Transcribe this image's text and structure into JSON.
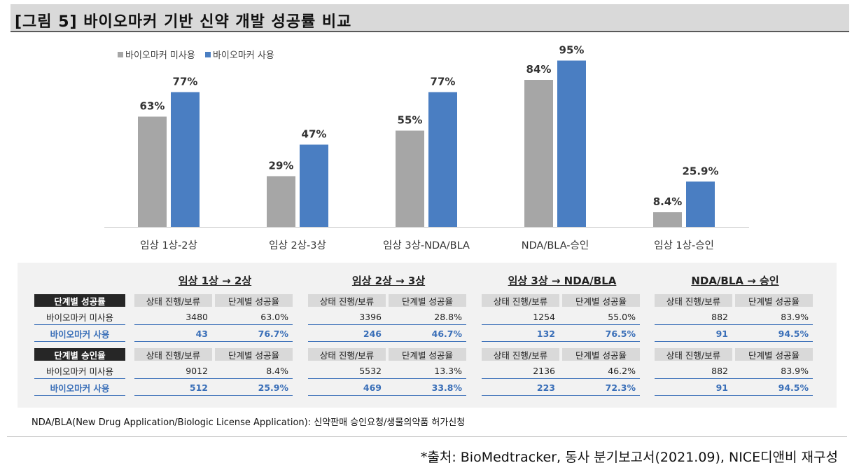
{
  "title": "[그림 5] 바이오마커 기반 신약 개발 성공률 비교",
  "colors": {
    "gray": "#a6a6a6",
    "blue": "#4a7ec2",
    "text_blue": "#3a6fb8",
    "header_dark": "#262626",
    "panel_bg": "#f2f2f2"
  },
  "chart_data": {
    "type": "bar",
    "categories": [
      "임상 1상-2상",
      "임상 2상-3상",
      "임상 3상-NDA/BLA",
      "NDA/BLA-승인",
      "임상 1상-승인"
    ],
    "series": [
      {
        "name": "바이오마커 미사용",
        "values": [
          63,
          29,
          55,
          84,
          8.4
        ],
        "labels": [
          "63%",
          "29%",
          "55%",
          "84%",
          "8.4%"
        ],
        "color": "#a6a6a6"
      },
      {
        "name": "바이오마커 사용",
        "values": [
          77,
          47,
          77,
          95,
          25.9
        ],
        "labels": [
          "77%",
          "47%",
          "77%",
          "95%",
          "25.9%"
        ],
        "color": "#4a7ec2"
      }
    ],
    "ylim": [
      0,
      100
    ],
    "legend": "top-left",
    "grid": false
  },
  "legend": {
    "items": [
      "바이오마커 미사용",
      "바이오마커 사용"
    ]
  },
  "table": {
    "groups": [
      "임상 1상 → 2상",
      "임상 2상 → 3상",
      "임상 3상 → NDA/BLA",
      "NDA/BLA → 승인"
    ],
    "col_headers": [
      "상태 진행/보류",
      "단계별 성공율"
    ],
    "sections": [
      {
        "label": "단계별 성공률",
        "rows": [
          {
            "label": "바이오마커 미사용",
            "values": [
              [
                "3480",
                "63.0%"
              ],
              [
                "3396",
                "28.8%"
              ],
              [
                "1254",
                "55.0%"
              ],
              [
                "882",
                "83.9%"
              ]
            ]
          },
          {
            "label": "바이오마커 사용",
            "values": [
              [
                "43",
                "76.7%"
              ],
              [
                "246",
                "46.7%"
              ],
              [
                "132",
                "76.5%"
              ],
              [
                "91",
                "94.5%"
              ]
            ]
          }
        ]
      },
      {
        "label": "단계별 승인율",
        "rows": [
          {
            "label": "바이오마커 미사용",
            "values": [
              [
                "9012",
                "8.4%"
              ],
              [
                "5532",
                "13.3%"
              ],
              [
                "2136",
                "46.2%"
              ],
              [
                "882",
                "83.9%"
              ]
            ]
          },
          {
            "label": "바이오마커 사용",
            "values": [
              [
                "512",
                "25.9%"
              ],
              [
                "469",
                "33.8%"
              ],
              [
                "223",
                "72.3%"
              ],
              [
                "91",
                "94.5%"
              ]
            ]
          }
        ]
      }
    ]
  },
  "note": "NDA/BLA(New Drug Application/Biologic License Application): 신약판매 승인요청/생물의약품 허가신청",
  "source": "*출처: BioMedtracker, 동사 분기보고서(2021.09), NICE디앤비 재구성"
}
